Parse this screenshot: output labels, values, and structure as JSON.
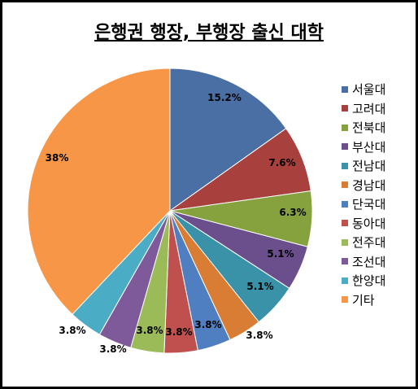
{
  "chart_data": {
    "type": "pie",
    "title": "은행권 행장, 부행장 출신 대학",
    "categories": [
      "서울대",
      "고려대",
      "전북대",
      "부산대",
      "전남대",
      "경남대",
      "단국대",
      "동아대",
      "전주대",
      "조선대",
      "한양대",
      "기타"
    ],
    "values": [
      15.2,
      7.6,
      6.3,
      5.1,
      5.1,
      3.8,
      3.8,
      3.8,
      3.8,
      3.8,
      3.8,
      38
    ],
    "data_labels": [
      "15.2%",
      "7.6%",
      "6.3%",
      "5.1%",
      "5.1%",
      "3.8%",
      "3.8%",
      "3.8%",
      "3.8%",
      "3.8%",
      "3.8%",
      "38%"
    ],
    "colors": [
      "#4A6FA5",
      "#A8403D",
      "#86A23E",
      "#6B4E8C",
      "#3A92A8",
      "#D97C34",
      "#4F7FC0",
      "#C0504D",
      "#9BBB59",
      "#7E5A9B",
      "#4BACC6",
      "#F79646"
    ],
    "legend_position": "right"
  }
}
